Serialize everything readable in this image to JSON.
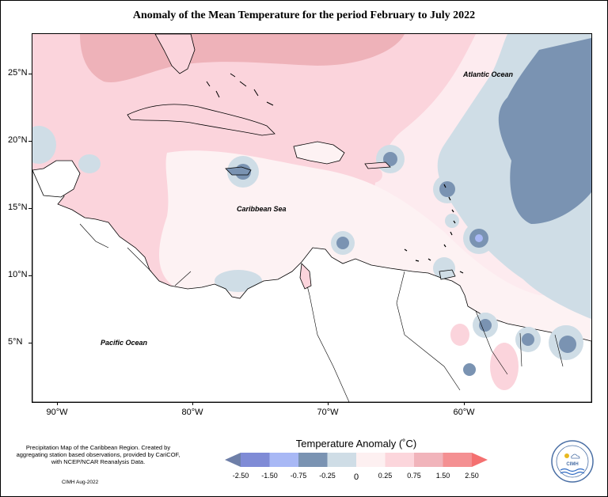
{
  "title": "Anomaly of the Mean Temperature for the period February to July 2022",
  "map": {
    "regions": [
      {
        "name": "Atlantic Ocean"
      },
      {
        "name": "Caribbean Sea"
      },
      {
        "name": "Pacific Ocean"
      }
    ],
    "lat_ticks": [
      "25°N",
      "20°N",
      "15°N",
      "10°N",
      "5°N"
    ],
    "lon_ticks": [
      "90°W",
      "80°W",
      "70°W",
      "60°W"
    ]
  },
  "legend": {
    "title": "Temperature Anomaly (˚C)",
    "labels": [
      "-2.50",
      "-1.50",
      "-0.75",
      "-0.25",
      "0",
      "0.25",
      "0.75",
      "1.50",
      "2.50"
    ],
    "colors": [
      "#6e7fa8",
      "#7f8bd6",
      "#a8b8f5",
      "#7a93b2",
      "#cfdde6",
      "#fdf0f1",
      "#fcd6dc",
      "#f1b4bb",
      "#f49092",
      "#f47070"
    ]
  },
  "footnote": "Precipitation Map of the Caribbean Region. Created by aggregating station based observations, provided by CariCOF, with NCEP/NCAR Reanalysis Data.",
  "credit": "CIMH Aug-2022",
  "logo": {
    "text": "CIMH"
  }
}
